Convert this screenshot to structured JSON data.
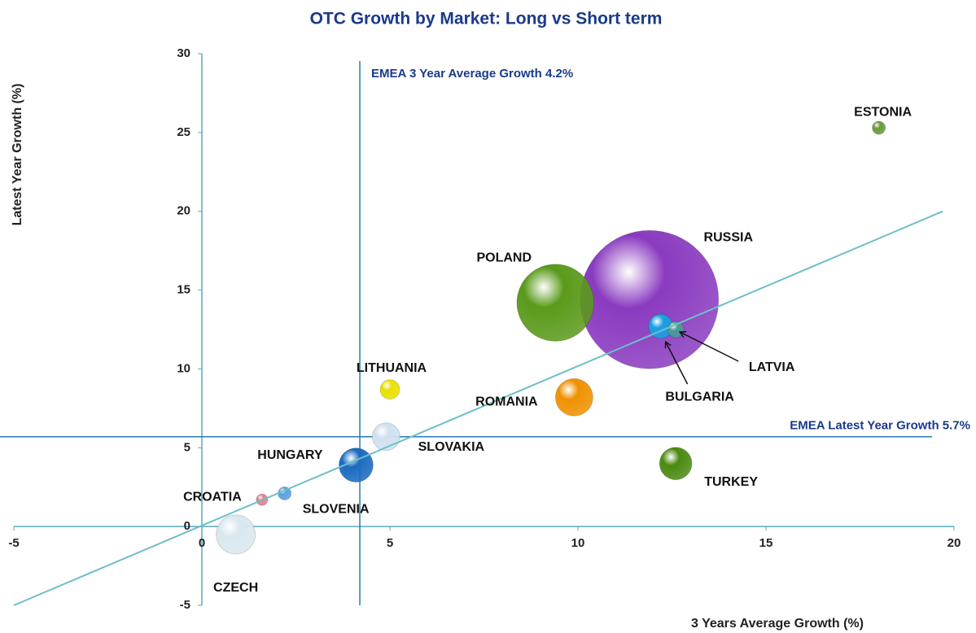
{
  "chart_data": {
    "type": "bubble",
    "title": "OTC Growth by Market: Long vs Short term",
    "x_label": "3 Years Average Growth (%)",
    "y_label": "Latest Year Growth (%)",
    "labels": [
      "RUSSIA",
      "POLAND",
      "CZECH",
      "ROMANIA",
      "HUNGARY",
      "TURKEY",
      "SLOVAKIA",
      "BULGARIA",
      "LITHUANIA",
      "LATVIA",
      "ESTONIA",
      "SLOVENIA",
      "CROATIA"
    ],
    "x": [
      11.9,
      9.4,
      0.9,
      9.9,
      4.1,
      12.6,
      4.9,
      12.2,
      5.0,
      12.6,
      18.0,
      2.2,
      1.6
    ],
    "values": [
      14.4,
      14.2,
      -0.5,
      8.2,
      3.9,
      4.0,
      5.7,
      12.7,
      8.7,
      12.5,
      25.3,
      2.1,
      1.7
    ],
    "sizes": [
      100,
      31,
      8,
      7.3,
      6.1,
      5.5,
      4,
      3.1,
      2,
      1.4,
      0.9,
      0.9,
      0.7
    ],
    "colors": [
      "#8a3bc0",
      "#5a9a1a",
      "#d8e8ee",
      "#f09000",
      "#1a6ac0",
      "#4a8a10",
      "#d0e0f0",
      "#1aa0e0",
      "#e8e000",
      "#4a9a9a",
      "#6a9a3a",
      "#5aa0e0",
      "#e08090"
    ],
    "xlim": [
      -5,
      20
    ],
    "xticks": [
      -5,
      0,
      5,
      10,
      15,
      20
    ],
    "ylim": [
      -5,
      30
    ],
    "yticks": [
      -5,
      0,
      5,
      10,
      15,
      20,
      25,
      30
    ],
    "trendline": {
      "x": [
        -5,
        19.7
      ],
      "y": [
        -5,
        20
      ]
    },
    "reference_lines": [
      {
        "axis": "x",
        "value": 4.2,
        "label": "EMEA 3 Year Average Growth 4.2%"
      },
      {
        "axis": "y",
        "value": 5.7,
        "label": "EMEA Latest Year Growth 5.7%"
      }
    ]
  }
}
